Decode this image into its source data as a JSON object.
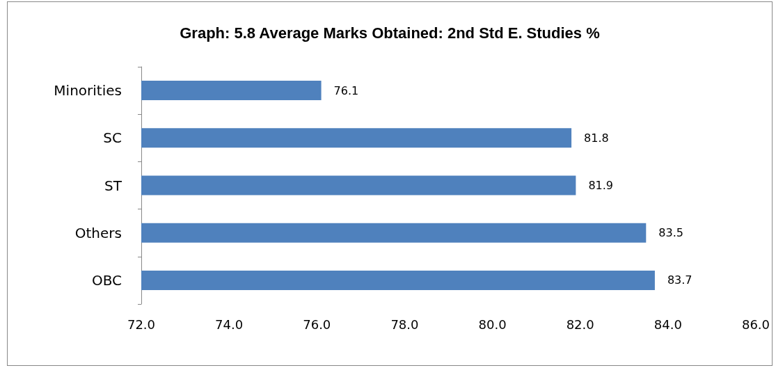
{
  "chart_data": {
    "type": "bar",
    "title": "Graph: 5.8 Average Marks Obtained: 2nd Std E. Studies %",
    "orientation": "horizontal",
    "categories": [
      "Minorities",
      "SC",
      "ST",
      "Others",
      "OBC"
    ],
    "values": [
      76.1,
      81.8,
      81.9,
      83.5,
      83.7
    ],
    "color": "#4f81bd",
    "xlim": [
      72,
      86
    ],
    "xticks": [
      {
        "value": 72,
        "label": "72.0"
      },
      {
        "value": 74,
        "label": "74.0"
      },
      {
        "value": 76,
        "label": "76.0"
      },
      {
        "value": 78,
        "label": "78.0"
      },
      {
        "value": 80,
        "label": "80.0"
      },
      {
        "value": 82,
        "label": "82.0"
      },
      {
        "value": 84,
        "label": "84.0"
      },
      {
        "value": 86,
        "label": "86.0"
      }
    ],
    "data_labels": true,
    "grid": false
  }
}
